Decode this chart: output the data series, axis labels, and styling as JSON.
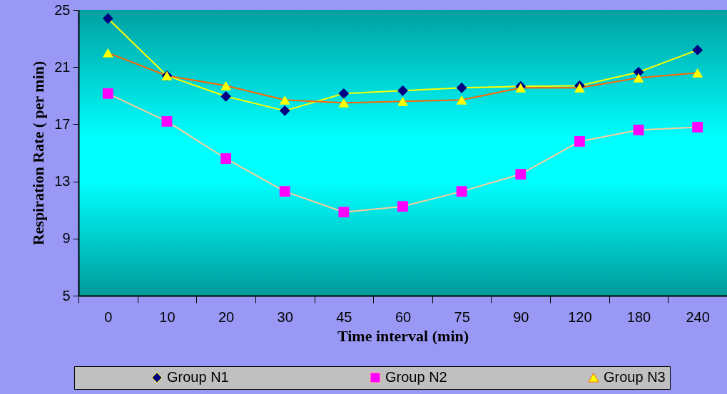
{
  "chart_data": {
    "type": "line",
    "xlabel": "Time interval (min)",
    "ylabel": "Respiration Rate ( per min)",
    "categories": [
      "0",
      "10",
      "20",
      "30",
      "45",
      "60",
      "75",
      "90",
      "120",
      "180",
      "240"
    ],
    "series": [
      {
        "name": "Group N1",
        "color": "#ffff00",
        "colors": [
          "#000080",
          "#000080",
          "#000080",
          "#000080",
          "#000080",
          "#000080",
          "#000080",
          "#000080",
          "#000080",
          "#000080",
          "#000080"
        ],
        "marker": "diamond",
        "values": [
          24.4,
          20.4,
          18.95,
          17.95,
          19.15,
          19.35,
          19.55,
          19.65,
          19.7,
          20.65,
          22.2
        ]
      },
      {
        "name": "Group N2",
        "color": "#ffcc99",
        "colors": [
          "#ff00ff",
          "#ff00ff",
          "#ff00ff",
          "#ff00ff",
          "#ff00ff",
          "#ff00ff",
          "#ff00ff",
          "#ff00ff",
          "#ff00ff",
          "#ff00ff",
          "#ff00ff"
        ],
        "marker": "square",
        "values": [
          19.15,
          17.2,
          14.6,
          12.3,
          10.85,
          11.25,
          12.3,
          13.5,
          15.8,
          16.6,
          16.8
        ]
      },
      {
        "name": "Group N3",
        "color": "#ff6600",
        "colors": [
          "#ffff00",
          "#ffff00",
          "#ffff00",
          "#ffff00",
          "#ffff00",
          "#ffff00",
          "#ffff00",
          "#ffff00",
          "#ffff00",
          "#ffff00",
          "#ffff00"
        ],
        "marker": "triangle",
        "values": [
          22.0,
          20.4,
          19.7,
          18.7,
          18.5,
          18.6,
          18.7,
          19.55,
          19.55,
          20.25,
          20.6
        ]
      }
    ],
    "ylim": [
      5,
      25
    ],
    "yticks": [
      5,
      9,
      13,
      17,
      21,
      25
    ],
    "grid": false,
    "legend": "bottom"
  }
}
